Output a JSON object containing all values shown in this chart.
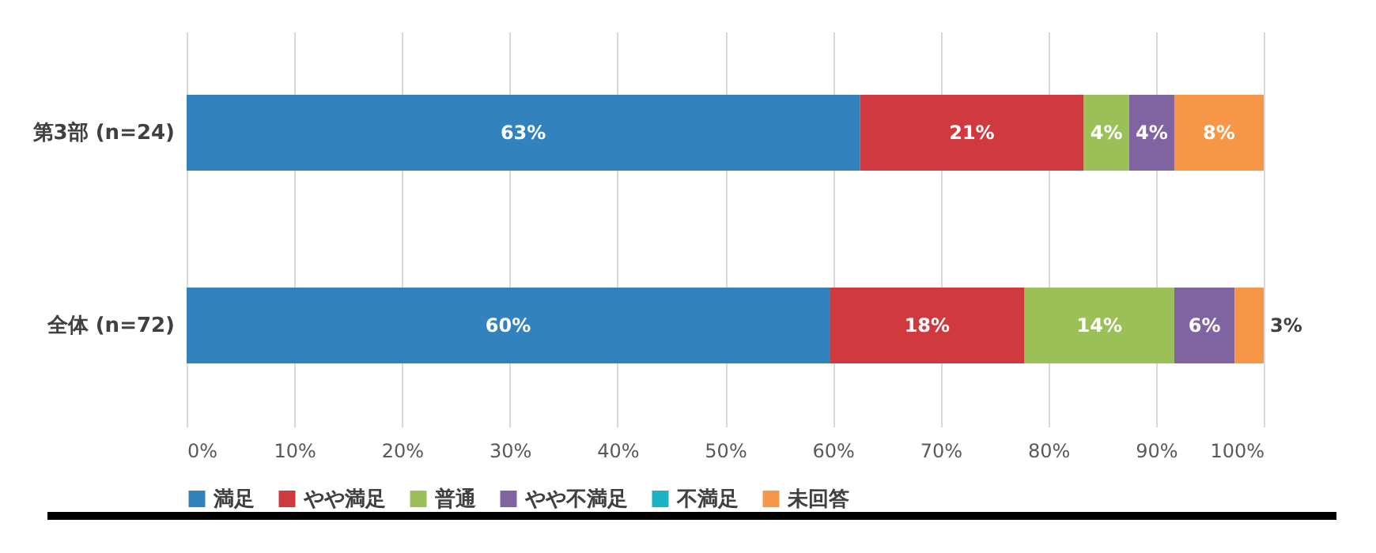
{
  "chart_data": {
    "type": "bar",
    "orientation": "horizontal",
    "stacked": true,
    "categories": [
      "第3部 (n=24)",
      "全体 (n=72)"
    ],
    "series": [
      {
        "name": "満足",
        "color": "#3182bd",
        "values": [
          62.5,
          59.7
        ],
        "value_labels": [
          "63%",
          "60%"
        ]
      },
      {
        "name": "やや満足",
        "color": "#d0393e",
        "values": [
          20.8,
          18.1
        ],
        "value_labels": [
          "21%",
          "18%"
        ]
      },
      {
        "name": "普通",
        "color": "#9bc057",
        "values": [
          4.2,
          13.9
        ],
        "value_labels": [
          "4%",
          "14%"
        ]
      },
      {
        "name": "やや不満足",
        "color": "#8064a2",
        "values": [
          4.2,
          5.6
        ],
        "value_labels": [
          "4%",
          "6%"
        ]
      },
      {
        "name": "不満足",
        "color": "#1bb1c6",
        "values": [
          0,
          0
        ],
        "value_labels": [
          null,
          null
        ]
      },
      {
        "name": "未回答",
        "color": "#f79646",
        "values": [
          8.3,
          2.7
        ],
        "value_labels": [
          "8%",
          "3%"
        ]
      }
    ],
    "xlim": [
      0,
      100
    ],
    "xticks": [
      {
        "value": 0,
        "label": "0%"
      },
      {
        "value": 10,
        "label": "10%"
      },
      {
        "value": 20,
        "label": "20%"
      },
      {
        "value": 30,
        "label": "30%"
      },
      {
        "value": 40,
        "label": "40%"
      },
      {
        "value": 50,
        "label": "50%"
      },
      {
        "value": 60,
        "label": "60%"
      },
      {
        "value": 70,
        "label": "70%"
      },
      {
        "value": 80,
        "label": "80%"
      },
      {
        "value": 90,
        "label": "90%"
      },
      {
        "value": 100,
        "label": "100%"
      }
    ],
    "grid": "x",
    "legend": "bottom"
  }
}
